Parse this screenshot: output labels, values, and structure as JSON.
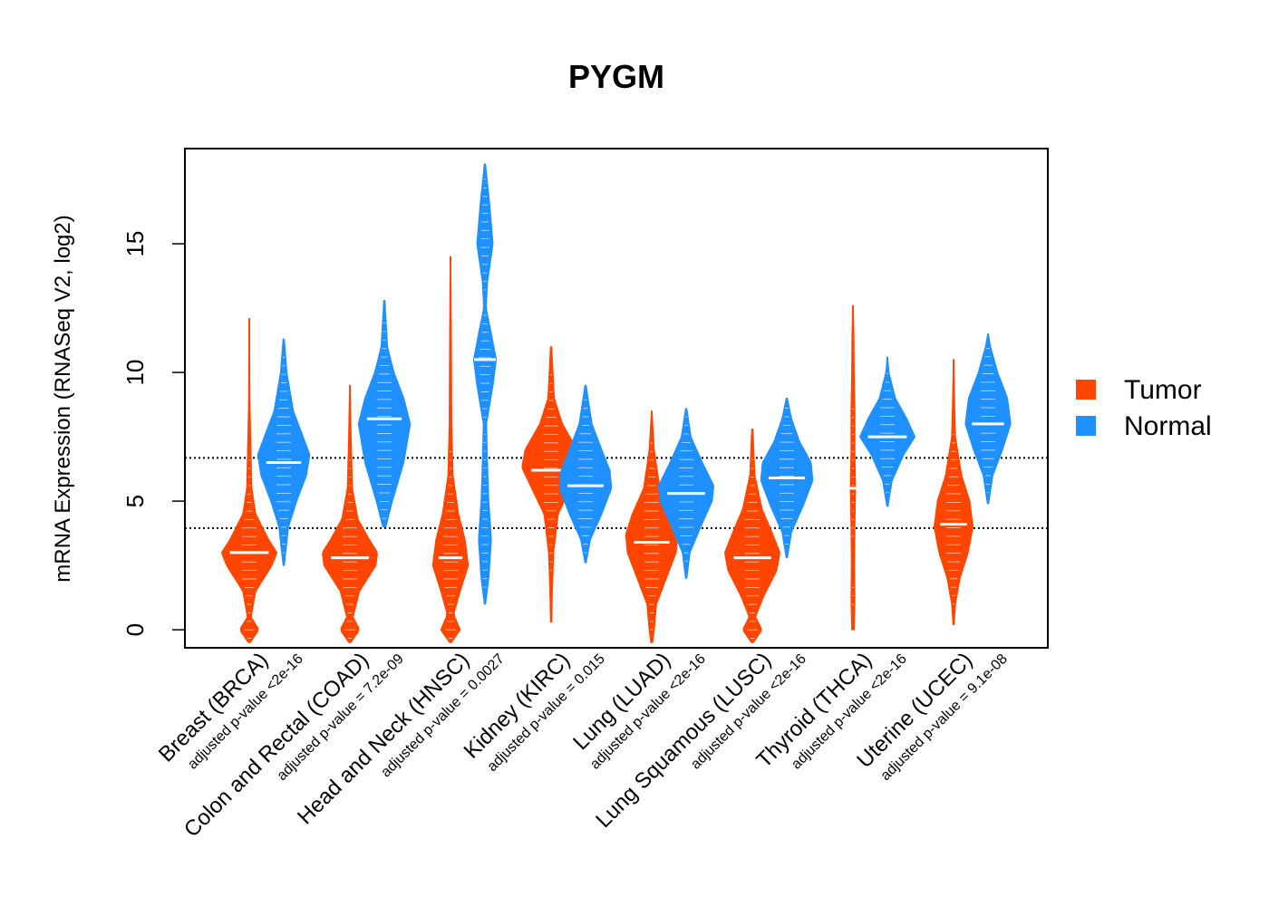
{
  "chart_data": {
    "type": "violin",
    "title": "PYGM",
    "ylabel": "mRNA Expression (RNASeq V2, log2)",
    "ylim": [
      -0.7,
      18.7
    ],
    "yticks": [
      0,
      5,
      10,
      15
    ],
    "reference_lines": [
      3.95,
      6.68
    ],
    "legend": {
      "placement": "right",
      "entries": [
        "Tumor",
        "Normal"
      ]
    },
    "colors": {
      "Tumor": "#ff4500",
      "Normal": "#1e90ff"
    },
    "groups": [
      {
        "label": "Breast (BRCA)",
        "pvalue": "adjusted p-value <2e-16",
        "tumor": {
          "min": -0.5,
          "max": 12.1,
          "median": 3.0,
          "profile": [
            [
              -0.5,
              0.03
            ],
            [
              0,
              0.3
            ],
            [
              0.5,
              0.06
            ],
            [
              1.5,
              0.2
            ],
            [
              2.5,
              0.7
            ],
            [
              3,
              0.85
            ],
            [
              3.5,
              0.6
            ],
            [
              4.5,
              0.2
            ],
            [
              5.5,
              0.08
            ],
            [
              7.7,
              0.04
            ],
            [
              9,
              0.02
            ],
            [
              12.1,
              0.01
            ]
          ]
        },
        "normal": {
          "min": 2.5,
          "max": 11.3,
          "median": 6.5,
          "profile": [
            [
              2.5,
              0.02
            ],
            [
              4,
              0.15
            ],
            [
              5,
              0.4
            ],
            [
              6,
              0.7
            ],
            [
              6.8,
              0.8
            ],
            [
              7.5,
              0.6
            ],
            [
              8.5,
              0.3
            ],
            [
              10,
              0.1
            ],
            [
              11.3,
              0.02
            ]
          ]
        }
      },
      {
        "label": "Colon and Rectal (COAD)",
        "pvalue": "adjusted p-value = 7.2e-09",
        "tumor": {
          "min": -0.5,
          "max": 9.5,
          "median": 2.8,
          "profile": [
            [
              -0.5,
              0.03
            ],
            [
              0,
              0.3
            ],
            [
              0.5,
              0.1
            ],
            [
              1.5,
              0.3
            ],
            [
              2.5,
              0.8
            ],
            [
              3,
              0.85
            ],
            [
              3.5,
              0.6
            ],
            [
              4.3,
              0.25
            ],
            [
              5.5,
              0.08
            ],
            [
              7.5,
              0.04
            ],
            [
              9.5,
              0.01
            ]
          ]
        },
        "normal": {
          "min": 4.0,
          "max": 12.8,
          "median": 8.2,
          "profile": [
            [
              4,
              0.05
            ],
            [
              5,
              0.25
            ],
            [
              6.5,
              0.6
            ],
            [
              8,
              0.8
            ],
            [
              9,
              0.6
            ],
            [
              10,
              0.3
            ],
            [
              11,
              0.1
            ],
            [
              12.8,
              0.02
            ]
          ]
        }
      },
      {
        "label": "Head and Neck (HNSC)",
        "pvalue": "adjusted p-value = 0.0027",
        "tumor": {
          "min": -0.5,
          "max": 14.5,
          "median": 2.8,
          "profile": [
            [
              -0.5,
              0.03
            ],
            [
              0,
              0.3
            ],
            [
              0.6,
              0.1
            ],
            [
              1.5,
              0.3
            ],
            [
              2.5,
              0.55
            ],
            [
              3.5,
              0.45
            ],
            [
              4.5,
              0.25
            ],
            [
              6,
              0.08
            ],
            [
              8,
              0.04
            ],
            [
              11,
              0.03
            ],
            [
              14.5,
              0.01
            ]
          ]
        },
        "normal": {
          "min": 1.0,
          "max": 18.1,
          "median": 10.5,
          "profile": [
            [
              1,
              0.02
            ],
            [
              2,
              0.12
            ],
            [
              3.5,
              0.2
            ],
            [
              5,
              0.12
            ],
            [
              6.5,
              0.08
            ],
            [
              8,
              0.05
            ],
            [
              9.5,
              0.25
            ],
            [
              10.5,
              0.35
            ],
            [
              11.5,
              0.2
            ],
            [
              12.5,
              0.04
            ],
            [
              13.5,
              0.08
            ],
            [
              15,
              0.25
            ],
            [
              16.5,
              0.15
            ],
            [
              18.1,
              0.02
            ]
          ]
        }
      },
      {
        "label": "Kidney (KIRC)",
        "pvalue": "adjusted p-value = 0.015",
        "tumor": {
          "min": 0.3,
          "max": 11.0,
          "median": 6.2,
          "profile": [
            [
              0.3,
              0.02
            ],
            [
              1.5,
              0.04
            ],
            [
              3,
              0.08
            ],
            [
              4.5,
              0.22
            ],
            [
              5.5,
              0.6
            ],
            [
              6.3,
              0.9
            ],
            [
              7,
              0.8
            ],
            [
              8,
              0.35
            ],
            [
              9,
              0.1
            ],
            [
              11,
              0.02
            ]
          ]
        },
        "normal": {
          "min": 2.6,
          "max": 9.5,
          "median": 5.6,
          "profile": [
            [
              2.6,
              0.02
            ],
            [
              3.5,
              0.15
            ],
            [
              4.5,
              0.5
            ],
            [
              5.5,
              0.8
            ],
            [
              6.2,
              0.75
            ],
            [
              7,
              0.5
            ],
            [
              8,
              0.2
            ],
            [
              9.5,
              0.02
            ]
          ]
        }
      },
      {
        "label": "Lung (LUAD)",
        "pvalue": "adjusted p-value <2e-16",
        "tumor": {
          "min": -0.5,
          "max": 8.5,
          "median": 3.4,
          "profile": [
            [
              -0.5,
              0.03
            ],
            [
              0,
              0.08
            ],
            [
              1,
              0.15
            ],
            [
              2,
              0.45
            ],
            [
              3,
              0.75
            ],
            [
              3.7,
              0.8
            ],
            [
              4.5,
              0.6
            ],
            [
              5.5,
              0.25
            ],
            [
              7,
              0.08
            ],
            [
              8.5,
              0.01
            ]
          ]
        },
        "normal": {
          "min": 2.0,
          "max": 8.6,
          "median": 5.3,
          "profile": [
            [
              2,
              0.02
            ],
            [
              3,
              0.12
            ],
            [
              4,
              0.45
            ],
            [
              5,
              0.8
            ],
            [
              5.6,
              0.85
            ],
            [
              6.5,
              0.5
            ],
            [
              7.5,
              0.15
            ],
            [
              8.6,
              0.02
            ]
          ]
        }
      },
      {
        "label": "Lung Squamous (LUSC)",
        "pvalue": "adjusted p-value <2e-16",
        "tumor": {
          "min": -0.5,
          "max": 7.8,
          "median": 2.8,
          "profile": [
            [
              -0.5,
              0.03
            ],
            [
              0,
              0.3
            ],
            [
              0.5,
              0.1
            ],
            [
              1.3,
              0.35
            ],
            [
              2.3,
              0.75
            ],
            [
              3,
              0.85
            ],
            [
              3.8,
              0.6
            ],
            [
              4.7,
              0.3
            ],
            [
              6,
              0.08
            ],
            [
              7.8,
              0.02
            ]
          ]
        },
        "normal": {
          "min": 2.8,
          "max": 9.0,
          "median": 5.9,
          "profile": [
            [
              2.8,
              0.02
            ],
            [
              3.8,
              0.15
            ],
            [
              4.8,
              0.5
            ],
            [
              5.8,
              0.8
            ],
            [
              6.5,
              0.75
            ],
            [
              7.3,
              0.4
            ],
            [
              8.2,
              0.15
            ],
            [
              9,
              0.02
            ]
          ]
        }
      },
      {
        "label": "Thyroid (THCA)",
        "pvalue": "adjusted p-value <2e-16",
        "tumor": {
          "min": 0.0,
          "max": 12.6,
          "median": 5.5,
          "profile": [
            [
              0,
              0.04
            ],
            [
              1,
              0.06
            ],
            [
              2.5,
              0.05
            ],
            [
              4,
              0.06
            ],
            [
              5.5,
              0.08
            ],
            [
              7,
              0.06
            ],
            [
              8.5,
              0.06
            ],
            [
              10,
              0.04
            ],
            [
              11.5,
              0.03
            ],
            [
              12.6,
              0.01
            ]
          ]
        },
        "normal": {
          "min": 4.8,
          "max": 10.6,
          "median": 7.5,
          "profile": [
            [
              4.8,
              0.02
            ],
            [
              5.8,
              0.15
            ],
            [
              6.8,
              0.5
            ],
            [
              7.5,
              0.85
            ],
            [
              8.2,
              0.6
            ],
            [
              9,
              0.25
            ],
            [
              10,
              0.05
            ],
            [
              10.6,
              0.01
            ]
          ]
        }
      },
      {
        "label": "Uterine (UCEC)",
        "pvalue": "adjusted p-value = 9.1e-08",
        "tumor": {
          "min": 0.2,
          "max": 10.5,
          "median": 4.1,
          "profile": [
            [
              0.2,
              0.02
            ],
            [
              1,
              0.06
            ],
            [
              2,
              0.2
            ],
            [
              3,
              0.45
            ],
            [
              4,
              0.6
            ],
            [
              5,
              0.5
            ],
            [
              6,
              0.25
            ],
            [
              7.5,
              0.06
            ],
            [
              9,
              0.03
            ],
            [
              10.5,
              0.01
            ]
          ]
        },
        "normal": {
          "min": 4.9,
          "max": 11.5,
          "median": 8.0,
          "profile": [
            [
              4.9,
              0.02
            ],
            [
              6,
              0.15
            ],
            [
              7,
              0.45
            ],
            [
              8,
              0.7
            ],
            [
              9,
              0.6
            ],
            [
              10,
              0.3
            ],
            [
              11,
              0.08
            ],
            [
              11.5,
              0.01
            ]
          ]
        }
      }
    ]
  }
}
